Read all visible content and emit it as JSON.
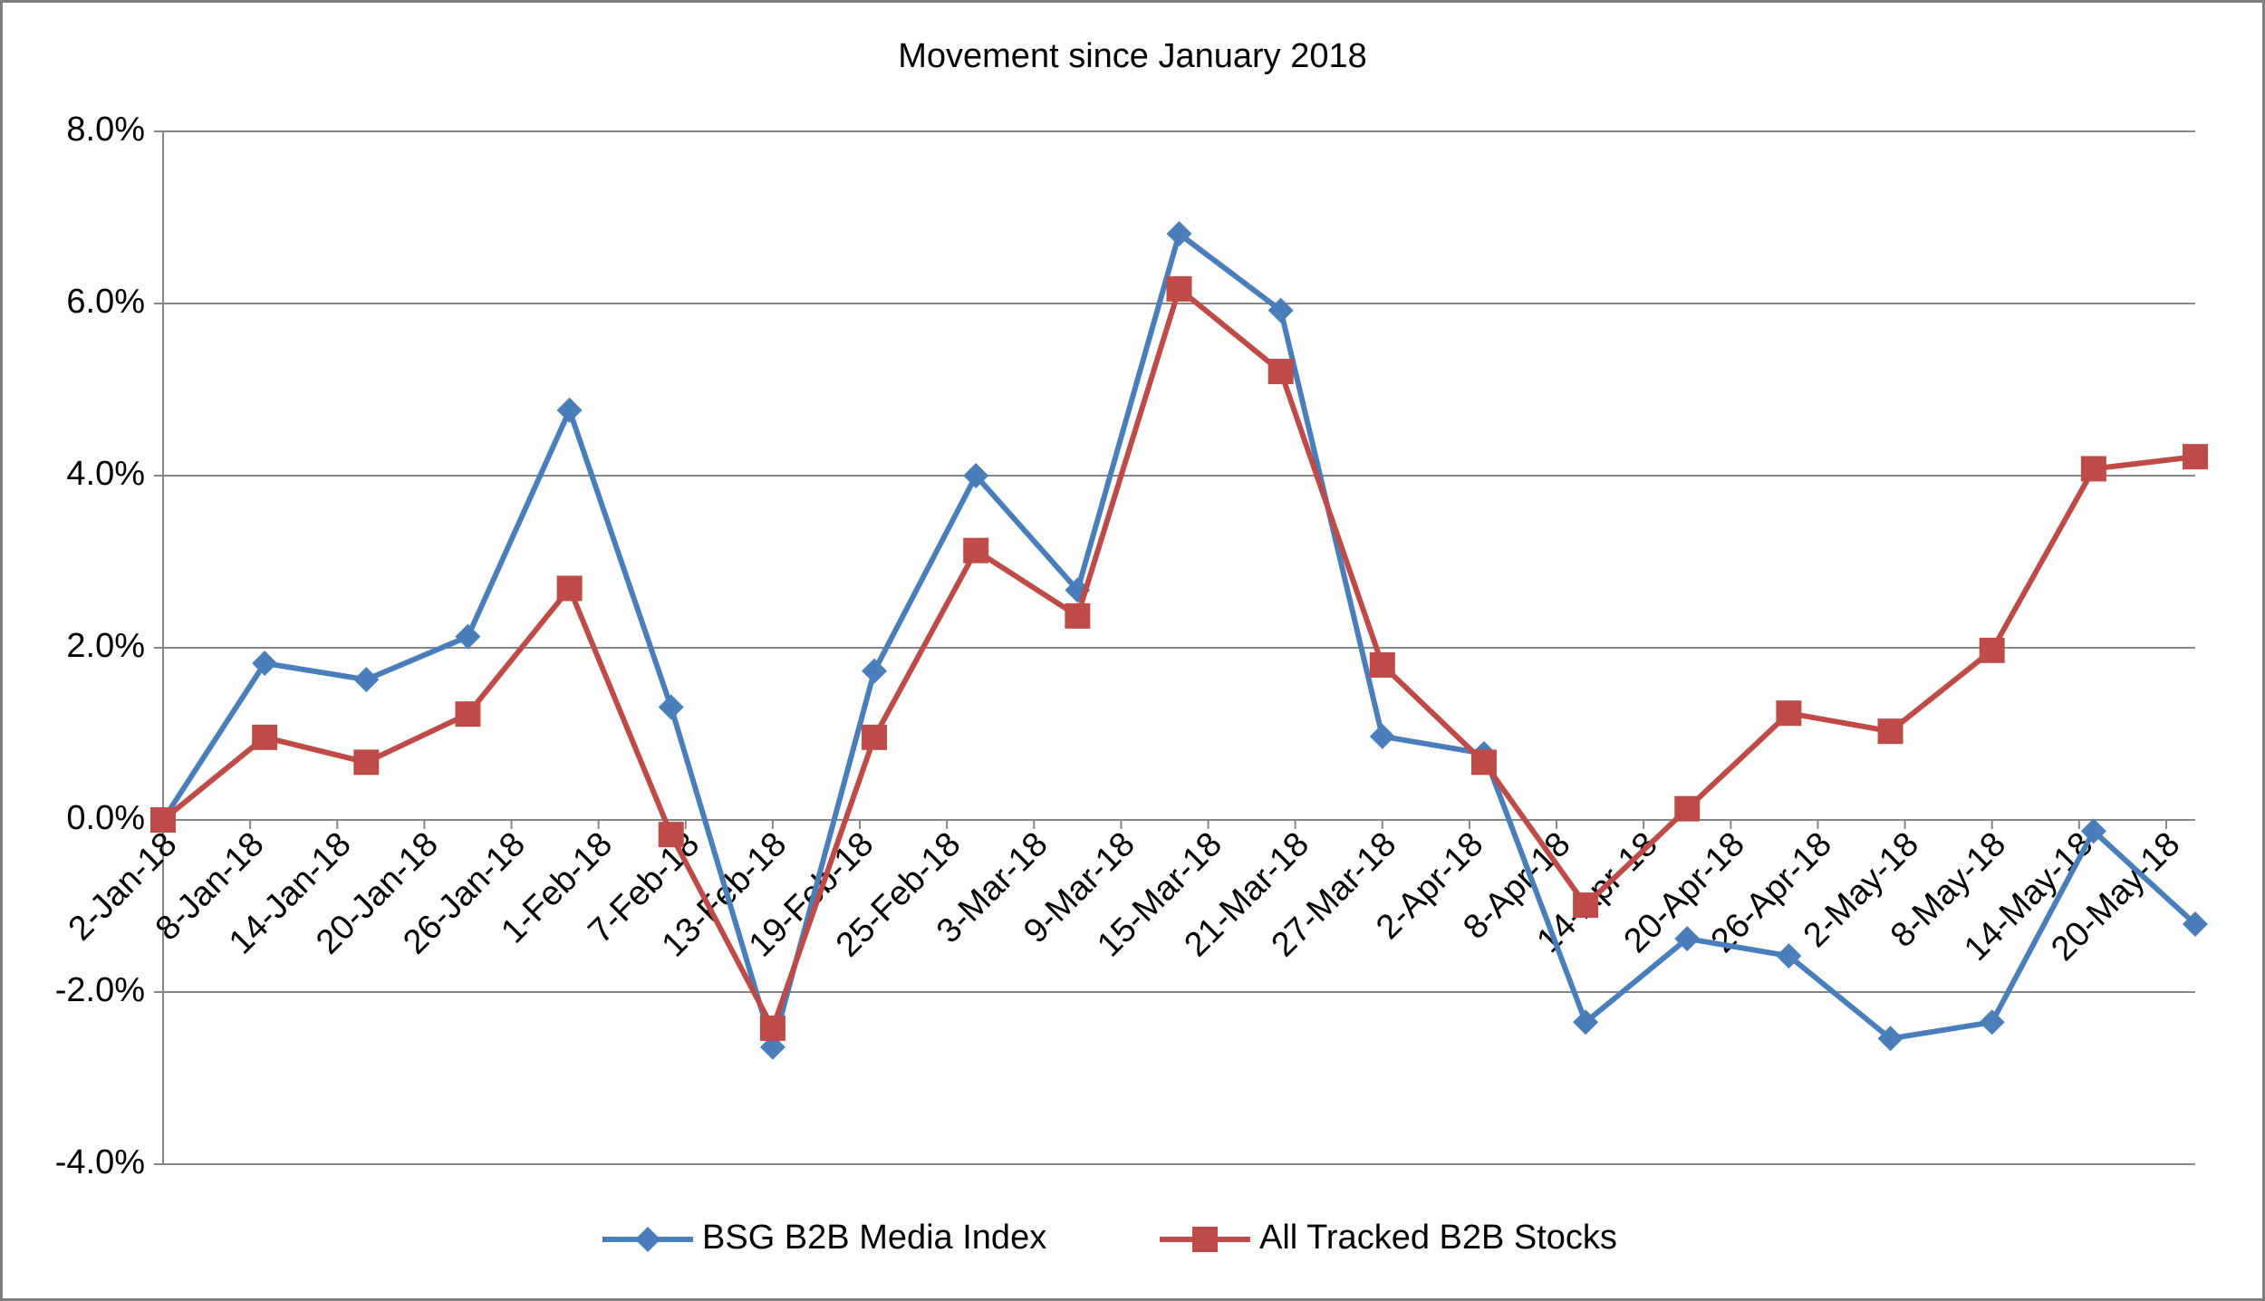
{
  "chart_data": {
    "type": "line",
    "title": "Movement since January 2018",
    "x": [
      "2018-01-02",
      "2018-01-09",
      "2018-01-16",
      "2018-01-23",
      "2018-01-30",
      "2018-02-06",
      "2018-02-13",
      "2018-02-20",
      "2018-02-27",
      "2018-03-06",
      "2018-03-13",
      "2018-03-20",
      "2018-03-27",
      "2018-04-03",
      "2018-04-10",
      "2018-04-17",
      "2018-04-24",
      "2018-05-01",
      "2018-05-08",
      "2018-05-15",
      "2018-05-22"
    ],
    "series": [
      {
        "name": "BSG B2B Media Index",
        "color": "#4a7ebb",
        "marker": "diamond",
        "values": [
          0,
          1.82,
          1.63,
          2.13,
          4.76,
          1.31,
          -2.64,
          1.73,
          4.0,
          2.67,
          6.81,
          5.92,
          0.97,
          0.77,
          -2.35,
          -1.38,
          -1.58,
          -2.54,
          -2.35,
          -0.13,
          -1.21
        ]
      },
      {
        "name": "All Tracked B2B Stocks",
        "color": "#be4b48",
        "marker": "square",
        "values": [
          0,
          0.96,
          0.67,
          1.23,
          2.69,
          -0.17,
          -2.42,
          0.96,
          3.13,
          2.37,
          6.17,
          5.21,
          1.8,
          0.67,
          -0.99,
          0.13,
          1.24,
          1.03,
          1.97,
          4.08,
          4.22
        ]
      }
    ],
    "xlim": [
      "2018-01-02",
      "2018-05-22"
    ],
    "xticks": [
      {
        "value": "2018-01-02",
        "label": "2-Jan-18"
      },
      {
        "value": "2018-01-08",
        "label": "8-Jan-18"
      },
      {
        "value": "2018-01-14",
        "label": "14-Jan-18"
      },
      {
        "value": "2018-01-20",
        "label": "20-Jan-18"
      },
      {
        "value": "2018-01-26",
        "label": "26-Jan-18"
      },
      {
        "value": "2018-02-01",
        "label": "1-Feb-18"
      },
      {
        "value": "2018-02-07",
        "label": "7-Feb-18"
      },
      {
        "value": "2018-02-13",
        "label": "13-Feb-18"
      },
      {
        "value": "2018-02-19",
        "label": "19-Feb-18"
      },
      {
        "value": "2018-02-25",
        "label": "25-Feb-18"
      },
      {
        "value": "2018-03-03",
        "label": "3-Mar-18"
      },
      {
        "value": "2018-03-09",
        "label": "9-Mar-18"
      },
      {
        "value": "2018-03-15",
        "label": "15-Mar-18"
      },
      {
        "value": "2018-03-21",
        "label": "21-Mar-18"
      },
      {
        "value": "2018-03-27",
        "label": "27-Mar-18"
      },
      {
        "value": "2018-04-02",
        "label": "2-Apr-18"
      },
      {
        "value": "2018-04-08",
        "label": "8-Apr-18"
      },
      {
        "value": "2018-04-14",
        "label": "14-Apr-18"
      },
      {
        "value": "2018-04-20",
        "label": "20-Apr-18"
      },
      {
        "value": "2018-04-26",
        "label": "26-Apr-18"
      },
      {
        "value": "2018-05-02",
        "label": "2-May-18"
      },
      {
        "value": "2018-05-08",
        "label": "8-May-18"
      },
      {
        "value": "2018-05-14",
        "label": "14-May-18"
      },
      {
        "value": "2018-05-20",
        "label": "20-May-18"
      }
    ],
    "ylim": [
      -4,
      8
    ],
    "yticks": [
      {
        "value": -4,
        "label": "-4.0%"
      },
      {
        "value": -2,
        "label": "-2.0%"
      },
      {
        "value": 0,
        "label": "0.0%"
      },
      {
        "value": 2,
        "label": "2.0%"
      },
      {
        "value": 4,
        "label": "4.0%"
      },
      {
        "value": 6,
        "label": "6.0%"
      },
      {
        "value": 8,
        "label": "8.0%"
      }
    ],
    "grid": true,
    "legend": "bottom"
  }
}
